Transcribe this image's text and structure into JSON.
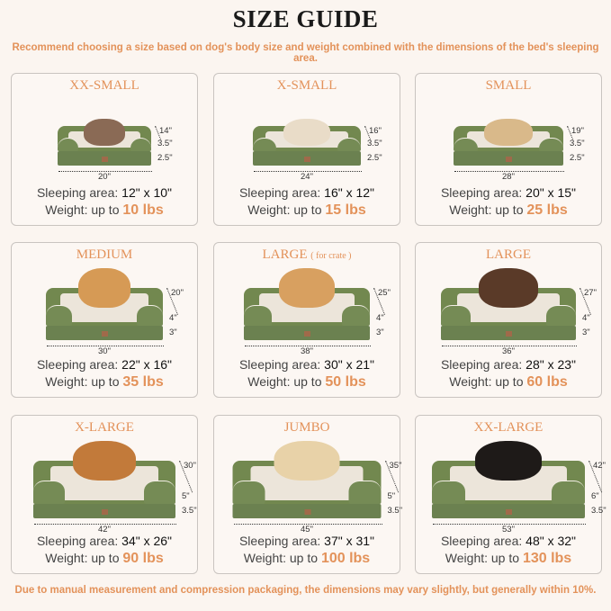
{
  "header": {
    "title": "SIZE GUIDE",
    "subtitle": "Recommend choosing a size based on dog's body size and weight combined with the dimensions of the bed's sleeping area."
  },
  "sizes": [
    {
      "name": "XX-SMALL",
      "note": "",
      "length": "20\"",
      "height": "14\"",
      "top": "3.5\"",
      "base": "2.5\"",
      "sleeping_label": "Sleeping area:",
      "sleeping": "12\" x 10\"",
      "weight_label": "Weight:  up to",
      "weight": "10 lbs",
      "pet": "cat",
      "pet_color": "#8a6a55"
    },
    {
      "name": "X-SMALL",
      "note": "",
      "length": "24\"",
      "height": "16\"",
      "top": "3.5\"",
      "base": "2.5\"",
      "sleeping_label": "Sleeping area:",
      "sleeping": "16\" x 12\"",
      "weight_label": "Weight: up to",
      "weight": "15 lbs",
      "pet": "dog",
      "pet_color": "#e9dcc8"
    },
    {
      "name": "SMALL",
      "note": "",
      "length": "28\"",
      "height": "19\"",
      "top": "3.5\"",
      "base": "2.5\"",
      "sleeping_label": "Sleeping area:",
      "sleeping": "20\" x 15\"",
      "weight_label": "Weight: up to",
      "weight": "25 lbs",
      "pet": "dog",
      "pet_color": "#d9b98a"
    },
    {
      "name": "MEDIUM",
      "note": "",
      "length": "30\"",
      "height": "20\"",
      "top": "4\"",
      "base": "3\"",
      "sleeping_label": "Sleeping area:",
      "sleeping": "22\" x 16\"",
      "weight_label": "Weight: up to",
      "weight": "35 lbs",
      "pet": "dog",
      "pet_color": "#d69a55"
    },
    {
      "name": "LARGE",
      "note": "( for crate )",
      "length": "38\"",
      "height": "25\"",
      "top": "4\"",
      "base": "3\"",
      "sleeping_label": "Sleeping area:",
      "sleeping": "30\" x 21\"",
      "weight_label": "Weight: up to",
      "weight": "50 lbs",
      "pet": "dog",
      "pet_color": "#d8a060"
    },
    {
      "name": "LARGE",
      "note": "",
      "length": "36\"",
      "height": "27\"",
      "top": "4\"",
      "base": "3\"",
      "sleeping_label": "Sleeping area:",
      "sleeping": "28\" x 23\"",
      "weight_label": "Weight: up to",
      "weight": "60 lbs",
      "pet": "dog",
      "pet_color": "#5a3a28"
    },
    {
      "name": "X-LARGE",
      "note": "",
      "length": "42\"",
      "height": "30\"",
      "top": "5\"",
      "base": "3.5\"",
      "sleeping_label": "Sleeping area:",
      "sleeping": "34\" x 26\"",
      "weight_label": "Weight: up to",
      "weight": "90 lbs",
      "pet": "dog",
      "pet_color": "#c27a3a"
    },
    {
      "name": "JUMBO",
      "note": "",
      "length": "45\"",
      "height": "35\"",
      "top": "5\"",
      "base": "3.5\"",
      "sleeping_label": "Sleeping area:",
      "sleeping": "37\" x 31\"",
      "weight_label": "Weight: up to",
      "weight": "100 lbs",
      "pet": "dog",
      "pet_color": "#e8d2a8"
    },
    {
      "name": "XX-LARGE",
      "note": "",
      "length": "53\"",
      "height": "42\"",
      "top": "6\"",
      "base": "3.5\"",
      "sleeping_label": "Sleeping area:",
      "sleeping": "48\" x 32\"",
      "weight_label": "Weight: up to",
      "weight": "130 lbs",
      "pet": "dog",
      "pet_color": "#1e1a18"
    }
  ],
  "footer": "Due to manual measurement and compression packaging, the dimensions may vary slightly, but generally within 10%.",
  "colors": {
    "accent": "#e3925a",
    "bed_green": "#6b8150",
    "background": "#fbf5f0"
  }
}
